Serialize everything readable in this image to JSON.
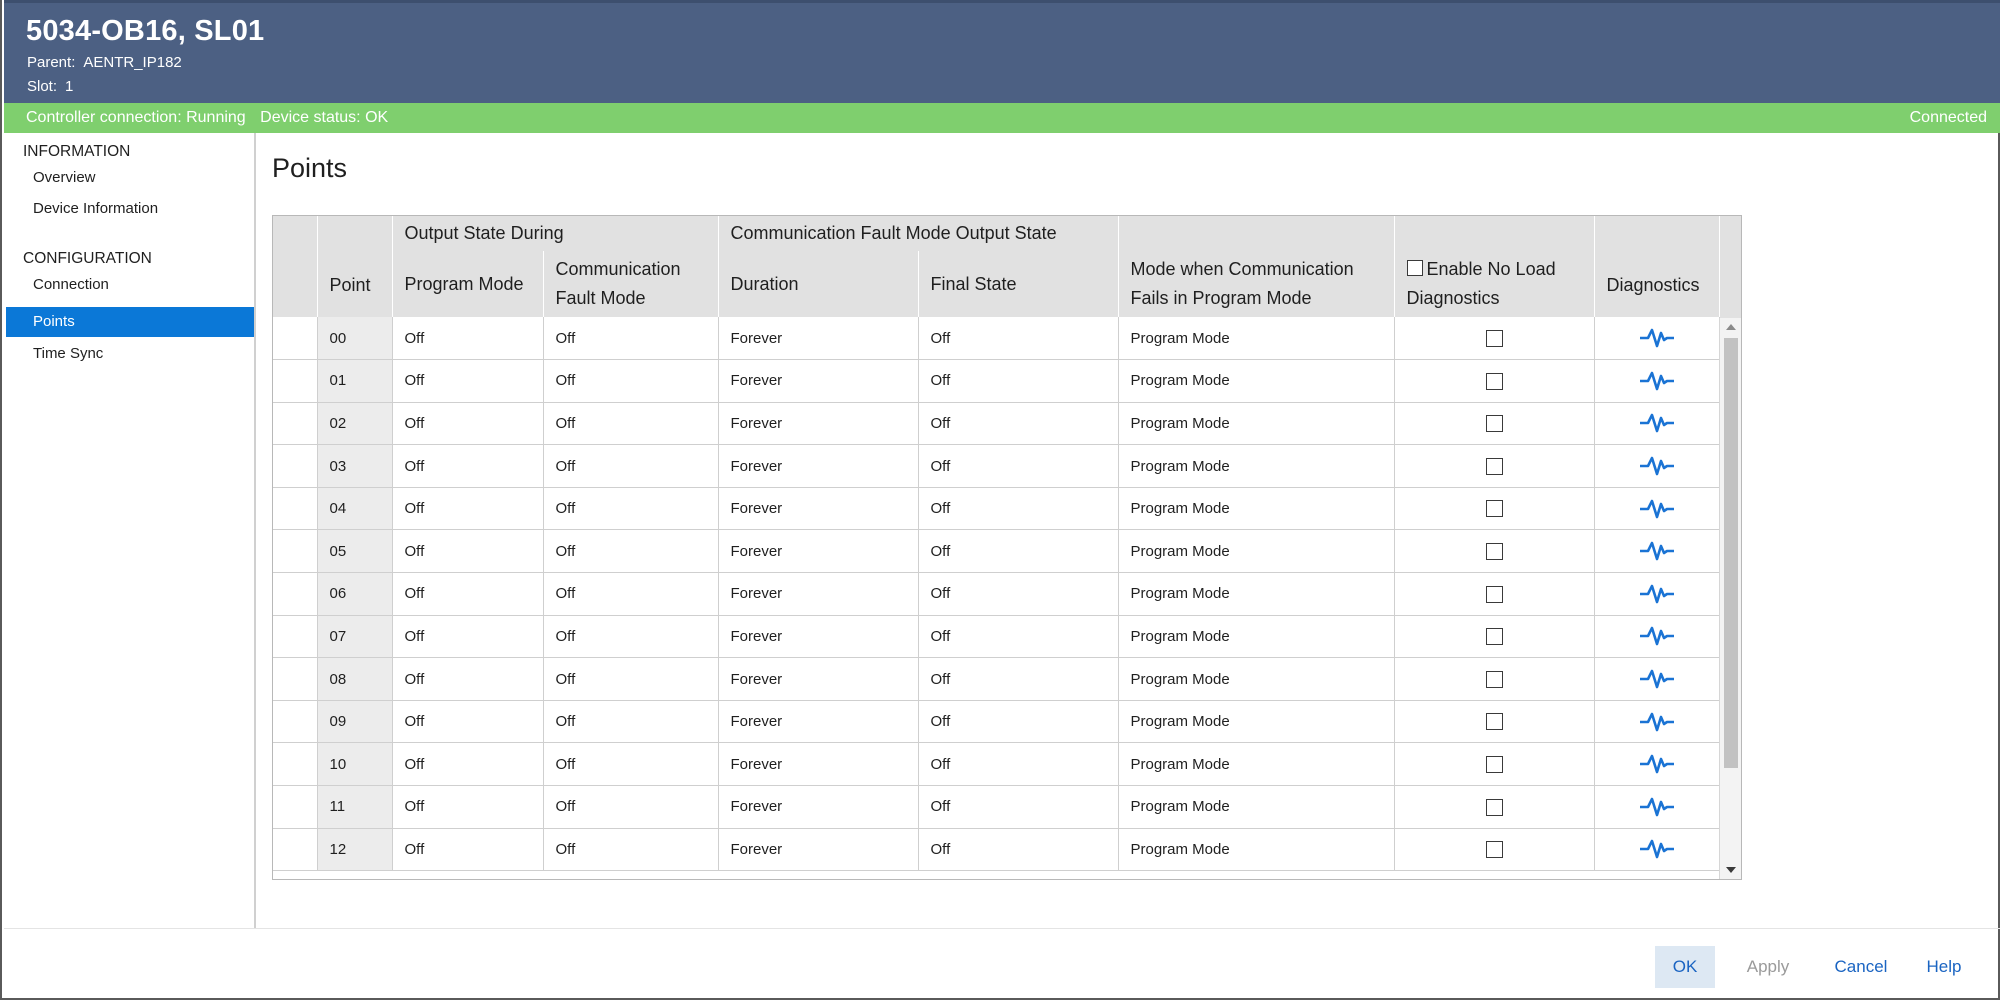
{
  "header": {
    "title": "5034-OB16, SL01",
    "parent_label": "Parent:",
    "parent_value": "AENTR_IP182",
    "slot_label": "Slot:",
    "slot_value": "1"
  },
  "status": {
    "controller_connection": "Controller connection: Running",
    "device_status": "Device status: OK",
    "connection_state": "Connected",
    "color": "#7fcf6e"
  },
  "sidebar": {
    "information_heading": "INFORMATION",
    "overview": "Overview",
    "device_information": "Device Information",
    "configuration_heading": "CONFIGURATION",
    "connection": "Connection",
    "points": "Points",
    "time_sync": "Time Sync",
    "selected": "Points"
  },
  "page": {
    "title": "Points"
  },
  "table": {
    "group_output_state": "Output State During",
    "group_comm_fault": "Communication Fault Mode Output State",
    "col_point": "Point",
    "col_program_mode": "Program Mode",
    "col_comm_fault_mode": "Communication Fault Mode",
    "col_duration": "Duration",
    "col_final_state": "Final State",
    "col_mode_comm_fails": "Mode when Communication Fails in Program Mode",
    "col_enable_no_load": "Enable No Load Diagnostics",
    "col_diagnostics": "Diagnostics",
    "rows": [
      {
        "point": "00",
        "program_mode": "Off",
        "comm_fault_mode": "Off",
        "duration": "Forever",
        "final_state": "Off",
        "mode": "Program Mode",
        "no_load": false
      },
      {
        "point": "01",
        "program_mode": "Off",
        "comm_fault_mode": "Off",
        "duration": "Forever",
        "final_state": "Off",
        "mode": "Program Mode",
        "no_load": false
      },
      {
        "point": "02",
        "program_mode": "Off",
        "comm_fault_mode": "Off",
        "duration": "Forever",
        "final_state": "Off",
        "mode": "Program Mode",
        "no_load": false
      },
      {
        "point": "03",
        "program_mode": "Off",
        "comm_fault_mode": "Off",
        "duration": "Forever",
        "final_state": "Off",
        "mode": "Program Mode",
        "no_load": false
      },
      {
        "point": "04",
        "program_mode": "Off",
        "comm_fault_mode": "Off",
        "duration": "Forever",
        "final_state": "Off",
        "mode": "Program Mode",
        "no_load": false
      },
      {
        "point": "05",
        "program_mode": "Off",
        "comm_fault_mode": "Off",
        "duration": "Forever",
        "final_state": "Off",
        "mode": "Program Mode",
        "no_load": false
      },
      {
        "point": "06",
        "program_mode": "Off",
        "comm_fault_mode": "Off",
        "duration": "Forever",
        "final_state": "Off",
        "mode": "Program Mode",
        "no_load": false
      },
      {
        "point": "07",
        "program_mode": "Off",
        "comm_fault_mode": "Off",
        "duration": "Forever",
        "final_state": "Off",
        "mode": "Program Mode",
        "no_load": false
      },
      {
        "point": "08",
        "program_mode": "Off",
        "comm_fault_mode": "Off",
        "duration": "Forever",
        "final_state": "Off",
        "mode": "Program Mode",
        "no_load": false
      },
      {
        "point": "09",
        "program_mode": "Off",
        "comm_fault_mode": "Off",
        "duration": "Forever",
        "final_state": "Off",
        "mode": "Program Mode",
        "no_load": false
      },
      {
        "point": "10",
        "program_mode": "Off",
        "comm_fault_mode": "Off",
        "duration": "Forever",
        "final_state": "Off",
        "mode": "Program Mode",
        "no_load": false
      },
      {
        "point": "11",
        "program_mode": "Off",
        "comm_fault_mode": "Off",
        "duration": "Forever",
        "final_state": "Off",
        "mode": "Program Mode",
        "no_load": false
      },
      {
        "point": "12",
        "program_mode": "Off",
        "comm_fault_mode": "Off",
        "duration": "Forever",
        "final_state": "Off",
        "mode": "Program Mode",
        "no_load": false
      }
    ],
    "diagnostics_icon": "pulse-waveform-icon",
    "diagnostics_color": "#1a73d4"
  },
  "footer": {
    "ok": "OK",
    "apply": "Apply",
    "cancel": "Cancel",
    "help": "Help"
  }
}
